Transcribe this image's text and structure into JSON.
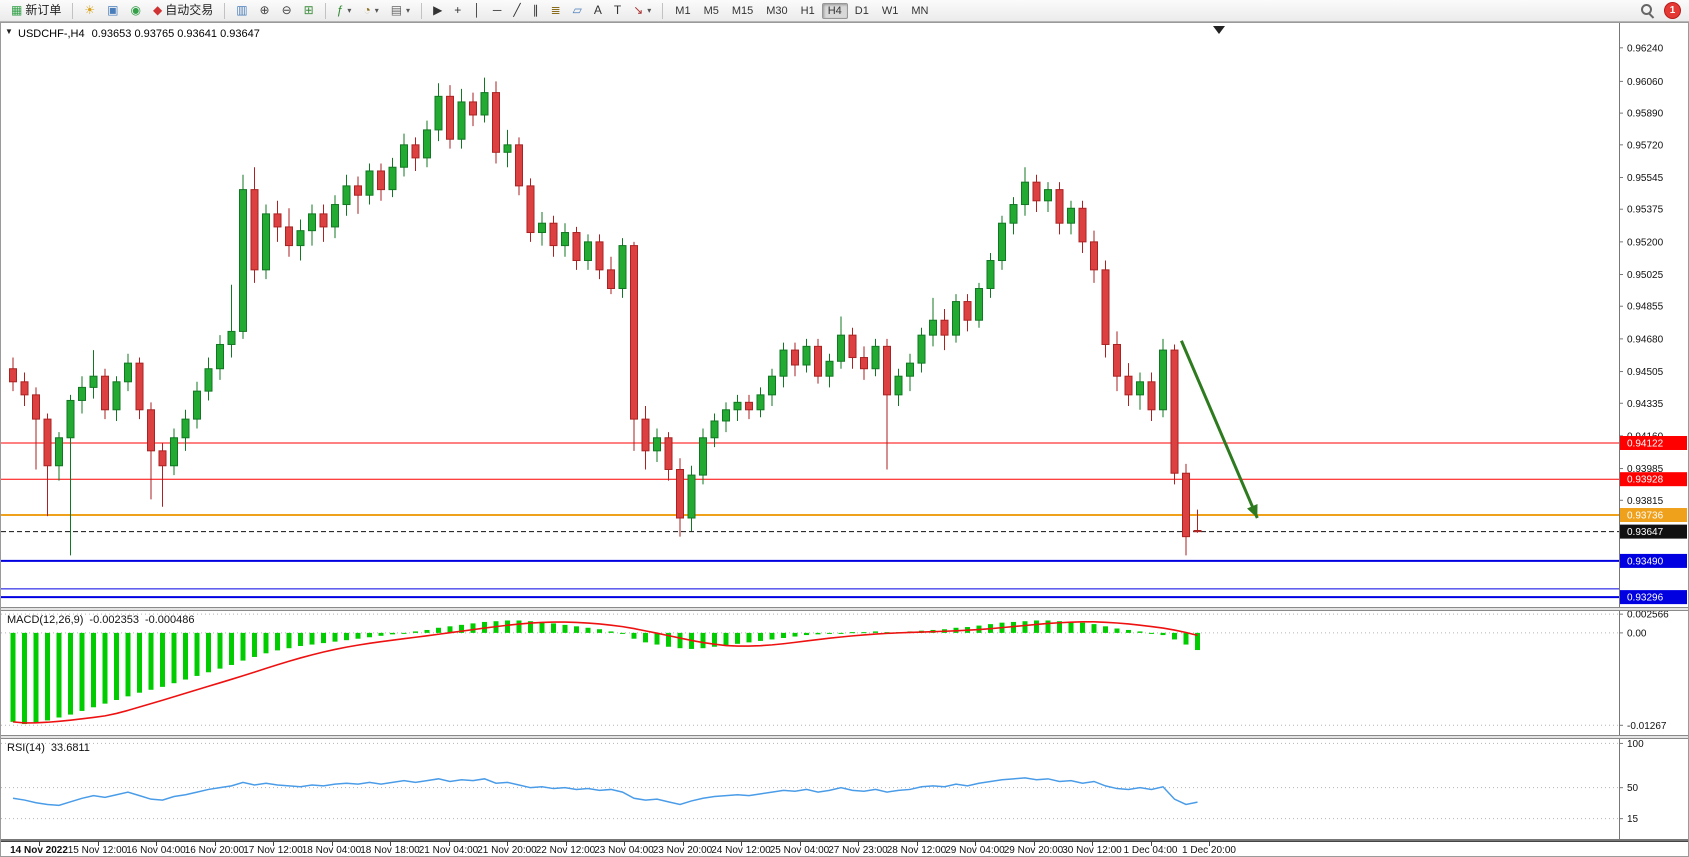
{
  "toolbar": {
    "groups": [
      {
        "name": "orders",
        "items": [
          {
            "name": "new-order-button",
            "glyph": "▦",
            "glyph_color": "#2e9e44",
            "label": "新订单"
          }
        ]
      },
      {
        "name": "terminal",
        "items": [
          {
            "name": "lightbulb-icon",
            "glyph": "☀",
            "glyph_color": "#d9a21b"
          },
          {
            "name": "chart-window-icon",
            "glyph": "▣",
            "glyph_color": "#4a7ebb"
          },
          {
            "name": "headset-icon",
            "glyph": "◉",
            "glyph_color": "#34a048"
          },
          {
            "name": "autotrading-button",
            "glyph": "◆",
            "glyph_color": "#cf3333",
            "label": "自动交易"
          }
        ]
      },
      {
        "name": "chart-display",
        "items": [
          {
            "name": "bar-chart-icon",
            "glyph": "▥",
            "glyph_color": "#4a7ebb"
          },
          {
            "name": "zoom-in-icon",
            "glyph": "⊕",
            "glyph_color": "#444444"
          },
          {
            "name": "zoom-out-icon",
            "glyph": "⊖",
            "glyph_color": "#444444"
          },
          {
            "name": "tile-windows-icon",
            "glyph": "⊞",
            "glyph_color": "#3c8c3c"
          }
        ]
      },
      {
        "name": "chart-tools",
        "items": [
          {
            "name": "indicators-icon",
            "glyph": "ƒ",
            "glyph_color": "#2e8b2e",
            "caret": true
          },
          {
            "name": "periods-icon",
            "glyph": "◔",
            "glyph_color": "#8a6d1b",
            "caret": true
          },
          {
            "name": "templates-icon",
            "glyph": "▤",
            "glyph_color": "#666666",
            "caret": true
          }
        ]
      },
      {
        "name": "objects",
        "items": [
          {
            "name": "cursor-icon",
            "glyph": "▶",
            "glyph_color": "#333333"
          },
          {
            "name": "crosshair-icon",
            "glyph": "+",
            "glyph_color": "#333333"
          },
          {
            "name": "vertical-line-icon",
            "glyph": "│",
            "glyph_color": "#333333"
          },
          {
            "name": "horizontal-line-icon",
            "glyph": "─",
            "glyph_color": "#333333"
          },
          {
            "name": "trendline-icon",
            "glyph": "╱",
            "glyph_color": "#333333"
          },
          {
            "name": "channel-icon",
            "glyph": "∥",
            "glyph_color": "#333333"
          },
          {
            "name": "fibonacci-icon",
            "glyph": "≣",
            "glyph_color": "#8a6d1b"
          },
          {
            "name": "shapes-icon",
            "glyph": "▱",
            "glyph_color": "#4a7ebb"
          },
          {
            "name": "text-icon",
            "glyph": "A",
            "glyph_color": "#333333"
          },
          {
            "name": "text-label-icon",
            "glyph": "T",
            "glyph_color": "#333333"
          },
          {
            "name": "arrows-icon",
            "glyph": "↘",
            "glyph_color": "#aa3333",
            "caret": true
          }
        ]
      }
    ],
    "timeframes": [
      "M1",
      "M5",
      "M15",
      "M30",
      "H1",
      "H4",
      "D1",
      "W1",
      "MN"
    ],
    "active_timeframe": "H4",
    "badge": "1"
  },
  "chart": {
    "title": "USDCHF-,H4",
    "ohlc_text": "0.93653 0.93765 0.93641 0.93647"
  },
  "colors": {
    "bull": "#22aa33",
    "bull_dark": "#117722",
    "bear": "#dd4040",
    "bear_dark": "#aa2222",
    "macd_hist": "#00cc00",
    "macd_signal": "#ee1111",
    "rsi": "#4a9ce8"
  },
  "chart_data": {
    "type": "candlestick",
    "symbol": "USDCHF-",
    "timeframe": "H4",
    "ylim": [
      0.93243,
      0.96373
    ],
    "price_axis_labels": [
      "0.96240",
      "0.96060",
      "0.95890",
      "0.95720",
      "0.95545",
      "0.95375",
      "0.95200",
      "0.95025",
      "0.94855",
      "0.94680",
      "0.94505",
      "0.94335",
      "0.94160",
      "0.93985",
      "0.93815"
    ],
    "candles": [
      [
        0.9452,
        0.9458,
        0.944,
        0.9445
      ],
      [
        0.9445,
        0.945,
        0.9432,
        0.9438
      ],
      [
        0.9438,
        0.9442,
        0.9398,
        0.9425
      ],
      [
        0.9425,
        0.9428,
        0.9373,
        0.94
      ],
      [
        0.94,
        0.9418,
        0.9392,
        0.9415
      ],
      [
        0.9415,
        0.9438,
        0.9352,
        0.9435
      ],
      [
        0.9435,
        0.9448,
        0.9428,
        0.9442
      ],
      [
        0.9442,
        0.9462,
        0.9436,
        0.9448
      ],
      [
        0.9448,
        0.9452,
        0.9425,
        0.943
      ],
      [
        0.943,
        0.9448,
        0.9424,
        0.9445
      ],
      [
        0.9445,
        0.946,
        0.944,
        0.9455
      ],
      [
        0.9455,
        0.9458,
        0.9425,
        0.943
      ],
      [
        0.943,
        0.9434,
        0.9382,
        0.9408
      ],
      [
        0.9408,
        0.9412,
        0.9378,
        0.94
      ],
      [
        0.94,
        0.942,
        0.9395,
        0.9415
      ],
      [
        0.9415,
        0.943,
        0.9408,
        0.9425
      ],
      [
        0.9425,
        0.9445,
        0.942,
        0.944
      ],
      [
        0.944,
        0.9458,
        0.9435,
        0.9452
      ],
      [
        0.9452,
        0.947,
        0.9446,
        0.9465
      ],
      [
        0.9465,
        0.9497,
        0.9458,
        0.9472
      ],
      [
        0.9472,
        0.9556,
        0.9468,
        0.9548
      ],
      [
        0.9548,
        0.956,
        0.9498,
        0.9505
      ],
      [
        0.9505,
        0.954,
        0.95,
        0.9535
      ],
      [
        0.9535,
        0.9542,
        0.952,
        0.9528
      ],
      [
        0.9528,
        0.9538,
        0.9512,
        0.9518
      ],
      [
        0.9518,
        0.9532,
        0.951,
        0.9526
      ],
      [
        0.9526,
        0.954,
        0.9518,
        0.9535
      ],
      [
        0.9535,
        0.954,
        0.952,
        0.9528
      ],
      [
        0.9528,
        0.9545,
        0.9522,
        0.954
      ],
      [
        0.954,
        0.9556,
        0.9534,
        0.955
      ],
      [
        0.955,
        0.9555,
        0.9535,
        0.9545
      ],
      [
        0.9545,
        0.9562,
        0.954,
        0.9558
      ],
      [
        0.9558,
        0.9562,
        0.9542,
        0.9548
      ],
      [
        0.9548,
        0.9565,
        0.9544,
        0.956
      ],
      [
        0.956,
        0.9578,
        0.9555,
        0.9572
      ],
      [
        0.9572,
        0.9576,
        0.9558,
        0.9565
      ],
      [
        0.9565,
        0.9585,
        0.956,
        0.958
      ],
      [
        0.958,
        0.9605,
        0.9574,
        0.9598
      ],
      [
        0.9598,
        0.9604,
        0.957,
        0.9575
      ],
      [
        0.9575,
        0.9602,
        0.957,
        0.9595
      ],
      [
        0.9595,
        0.96,
        0.9582,
        0.9588
      ],
      [
        0.9588,
        0.9608,
        0.9584,
        0.96
      ],
      [
        0.96,
        0.9606,
        0.9562,
        0.9568
      ],
      [
        0.9568,
        0.958,
        0.956,
        0.9572
      ],
      [
        0.9572,
        0.9576,
        0.9545,
        0.955
      ],
      [
        0.955,
        0.9554,
        0.952,
        0.9525
      ],
      [
        0.9525,
        0.9536,
        0.9518,
        0.953
      ],
      [
        0.953,
        0.9534,
        0.9512,
        0.9518
      ],
      [
        0.9518,
        0.953,
        0.9512,
        0.9525
      ],
      [
        0.9525,
        0.9528,
        0.9505,
        0.951
      ],
      [
        0.951,
        0.9524,
        0.9505,
        0.952
      ],
      [
        0.952,
        0.9524,
        0.95,
        0.9505
      ],
      [
        0.9505,
        0.9512,
        0.9492,
        0.9495
      ],
      [
        0.9495,
        0.9522,
        0.949,
        0.9518
      ],
      [
        0.9518,
        0.952,
        0.9408,
        0.9425
      ],
      [
        0.9425,
        0.9432,
        0.9398,
        0.9408
      ],
      [
        0.9408,
        0.942,
        0.9402,
        0.9415
      ],
      [
        0.9415,
        0.9418,
        0.9392,
        0.9398
      ],
      [
        0.9398,
        0.9404,
        0.9362,
        0.9372
      ],
      [
        0.9372,
        0.94,
        0.9365,
        0.9395
      ],
      [
        0.9395,
        0.942,
        0.939,
        0.9415
      ],
      [
        0.9415,
        0.9428,
        0.941,
        0.9424
      ],
      [
        0.9424,
        0.9434,
        0.9418,
        0.943
      ],
      [
        0.943,
        0.9438,
        0.9424,
        0.9434
      ],
      [
        0.9434,
        0.9438,
        0.9425,
        0.943
      ],
      [
        0.943,
        0.9442,
        0.9426,
        0.9438
      ],
      [
        0.9438,
        0.9452,
        0.9432,
        0.9448
      ],
      [
        0.9448,
        0.9466,
        0.9442,
        0.9462
      ],
      [
        0.9462,
        0.9466,
        0.9448,
        0.9454
      ],
      [
        0.9454,
        0.9468,
        0.945,
        0.9464
      ],
      [
        0.9464,
        0.9468,
        0.9444,
        0.9448
      ],
      [
        0.9448,
        0.946,
        0.9442,
        0.9456
      ],
      [
        0.9456,
        0.948,
        0.9452,
        0.947
      ],
      [
        0.947,
        0.9474,
        0.9452,
        0.9458
      ],
      [
        0.9458,
        0.9464,
        0.9446,
        0.9452
      ],
      [
        0.9452,
        0.9468,
        0.9448,
        0.9464
      ],
      [
        0.9464,
        0.9468,
        0.9398,
        0.9438
      ],
      [
        0.9438,
        0.9452,
        0.9432,
        0.9448
      ],
      [
        0.9448,
        0.946,
        0.944,
        0.9455
      ],
      [
        0.9455,
        0.9474,
        0.945,
        0.947
      ],
      [
        0.947,
        0.949,
        0.9464,
        0.9478
      ],
      [
        0.9478,
        0.9484,
        0.9462,
        0.947
      ],
      [
        0.947,
        0.9492,
        0.9466,
        0.9488
      ],
      [
        0.9488,
        0.9492,
        0.9472,
        0.9478
      ],
      [
        0.9478,
        0.9498,
        0.9474,
        0.9495
      ],
      [
        0.9495,
        0.9514,
        0.949,
        0.951
      ],
      [
        0.951,
        0.9534,
        0.9505,
        0.953
      ],
      [
        0.953,
        0.9544,
        0.9524,
        0.954
      ],
      [
        0.954,
        0.956,
        0.9534,
        0.9552
      ],
      [
        0.9552,
        0.9556,
        0.9536,
        0.9542
      ],
      [
        0.9542,
        0.9552,
        0.9536,
        0.9548
      ],
      [
        0.9548,
        0.9552,
        0.9524,
        0.953
      ],
      [
        0.953,
        0.9542,
        0.9524,
        0.9538
      ],
      [
        0.9538,
        0.9542,
        0.9514,
        0.952
      ],
      [
        0.952,
        0.9526,
        0.9498,
        0.9505
      ],
      [
        0.9505,
        0.951,
        0.9458,
        0.9465
      ],
      [
        0.9465,
        0.9472,
        0.944,
        0.9448
      ],
      [
        0.9448,
        0.9455,
        0.9432,
        0.9438
      ],
      [
        0.9438,
        0.945,
        0.943,
        0.9445
      ],
      [
        0.9445,
        0.945,
        0.9424,
        0.943
      ],
      [
        0.943,
        0.9468,
        0.9426,
        0.9462
      ],
      [
        0.9462,
        0.9465,
        0.939,
        0.9396
      ],
      [
        0.9396,
        0.9401,
        0.9352,
        0.9362
      ],
      [
        0.93653,
        0.93765,
        0.93641,
        0.93647
      ]
    ],
    "hlines": [
      {
        "price": 0.94122,
        "label": "0.94122",
        "color": "#ff0000",
        "width": 1,
        "style": "solid"
      },
      {
        "price": 0.93928,
        "label": "0.93928",
        "color": "#ff0000",
        "width": 1,
        "style": "solid"
      },
      {
        "price": 0.93736,
        "label": "0.93736",
        "color": "#f0a11c",
        "width": 2,
        "style": "solid"
      },
      {
        "price": 0.93647,
        "label": "0.93647",
        "color": "#111111",
        "width": 1,
        "style": "dash"
      },
      {
        "price": 0.9349,
        "label": "0.93490",
        "color": "#0000e0",
        "width": 2,
        "style": "solid"
      },
      {
        "price": 0.9334,
        "label": null,
        "color": "#0000e0",
        "width": 1,
        "style": "solid"
      },
      {
        "price": 0.93296,
        "label": "0.93296",
        "color": "#0000e0",
        "width": 2,
        "style": "solid"
      }
    ],
    "arrow": {
      "from": {
        "index": 101.6,
        "price": 0.9467
      },
      "to": {
        "index": 108.2,
        "price": 0.9372
      },
      "color": "#2d7a1f"
    },
    "macd": {
      "name": "MACD(12,26,9)",
      "value_main": "-0.002353",
      "value_signal": "-0.000486",
      "scale": [
        -0.014,
        0.003
      ],
      "axis": [
        {
          "value": 0.002566,
          "label": "0.002566"
        },
        {
          "value": 0.0,
          "label": "0.00"
        },
        {
          "value": -0.01267,
          "label": "-0.01267"
        }
      ],
      "values": [
        -0.0122,
        -0.0125,
        -0.0123,
        -0.012,
        -0.0116,
        -0.0112,
        -0.0107,
        -0.0102,
        -0.0097,
        -0.0092,
        -0.0087,
        -0.0082,
        -0.0078,
        -0.0074,
        -0.0069,
        -0.0064,
        -0.0059,
        -0.0054,
        -0.0049,
        -0.0044,
        -0.0038,
        -0.0033,
        -0.0028,
        -0.0024,
        -0.0021,
        -0.0018,
        -0.0016,
        -0.0014,
        -0.0012,
        -0.001,
        -0.0008,
        -0.0006,
        -0.0004,
        -0.0002,
        0.0,
        0.0002,
        0.0004,
        0.0007,
        0.0009,
        0.0011,
        0.0013,
        0.0015,
        0.0016,
        0.0017,
        0.0017,
        0.0016,
        0.0015,
        0.0013,
        0.0011,
        0.0009,
        0.0007,
        0.0005,
        0.0002,
        -0.0001,
        -0.0008,
        -0.0013,
        -0.0016,
        -0.0019,
        -0.0021,
        -0.0022,
        -0.0021,
        -0.0019,
        -0.0017,
        -0.0015,
        -0.0013,
        -0.0011,
        -0.0009,
        -0.0007,
        -0.0005,
        -0.0003,
        -0.0002,
        -0.0001,
        0.0,
        0.0001,
        0.0001,
        0.0002,
        0.0001,
        0.0001,
        0.0002,
        0.0003,
        0.0004,
        0.0005,
        0.0007,
        0.0008,
        0.001,
        0.0012,
        0.0014,
        0.0015,
        0.0016,
        0.0017,
        0.0017,
        0.0016,
        0.0015,
        0.0014,
        0.0012,
        0.0009,
        0.0006,
        0.0004,
        0.0002,
        0.0,
        -0.0003,
        -0.0009,
        -0.0016,
        -0.002353
      ]
    },
    "rsi": {
      "name": "RSI(14)",
      "value": "33.6811",
      "scale": [
        -8,
        105
      ],
      "levels": [
        {
          "value": 100,
          "label": "100"
        },
        {
          "value": 50,
          "label": "50"
        },
        {
          "value": 15,
          "label": "15"
        }
      ],
      "values": [
        38,
        36,
        33,
        31,
        30,
        34,
        38,
        41,
        39,
        42,
        45,
        41,
        37,
        36,
        40,
        42,
        45,
        48,
        50,
        52,
        56,
        53,
        55,
        53,
        52,
        51,
        53,
        52,
        54,
        55,
        54,
        56,
        54,
        56,
        58,
        56,
        58,
        60,
        57,
        59,
        58,
        60,
        55,
        56,
        53,
        50,
        51,
        49,
        50,
        48,
        49,
        47,
        48,
        45,
        38,
        36,
        37,
        34,
        31,
        35,
        38,
        40,
        41,
        42,
        41,
        43,
        45,
        47,
        46,
        48,
        45,
        47,
        50,
        47,
        46,
        48,
        45,
        47,
        48,
        51,
        52,
        51,
        54,
        52,
        55,
        57,
        59,
        60,
        61,
        59,
        60,
        57,
        58,
        55,
        57,
        52,
        49,
        48,
        50,
        48,
        51,
        37,
        31,
        33.6811
      ]
    },
    "time_axis": [
      "14 Nov 2022",
      "15 Nov 12:00",
      "16 Nov 04:00",
      "16 Nov 20:00",
      "17 Nov 12:00",
      "18 Nov 04:00",
      "18 Nov 18:00",
      "21 Nov 04:00",
      "21 Nov 20:00",
      "22 Nov 12:00",
      "23 Nov 04:00",
      "23 Nov 20:00",
      "24 Nov 12:00",
      "25 Nov 04:00",
      "27 Nov 23:00",
      "28 Nov 12:00",
      "29 Nov 04:00",
      "29 Nov 20:00",
      "30 Nov 12:00",
      "1 Dec 04:00",
      "1 Dec 20:00"
    ]
  }
}
